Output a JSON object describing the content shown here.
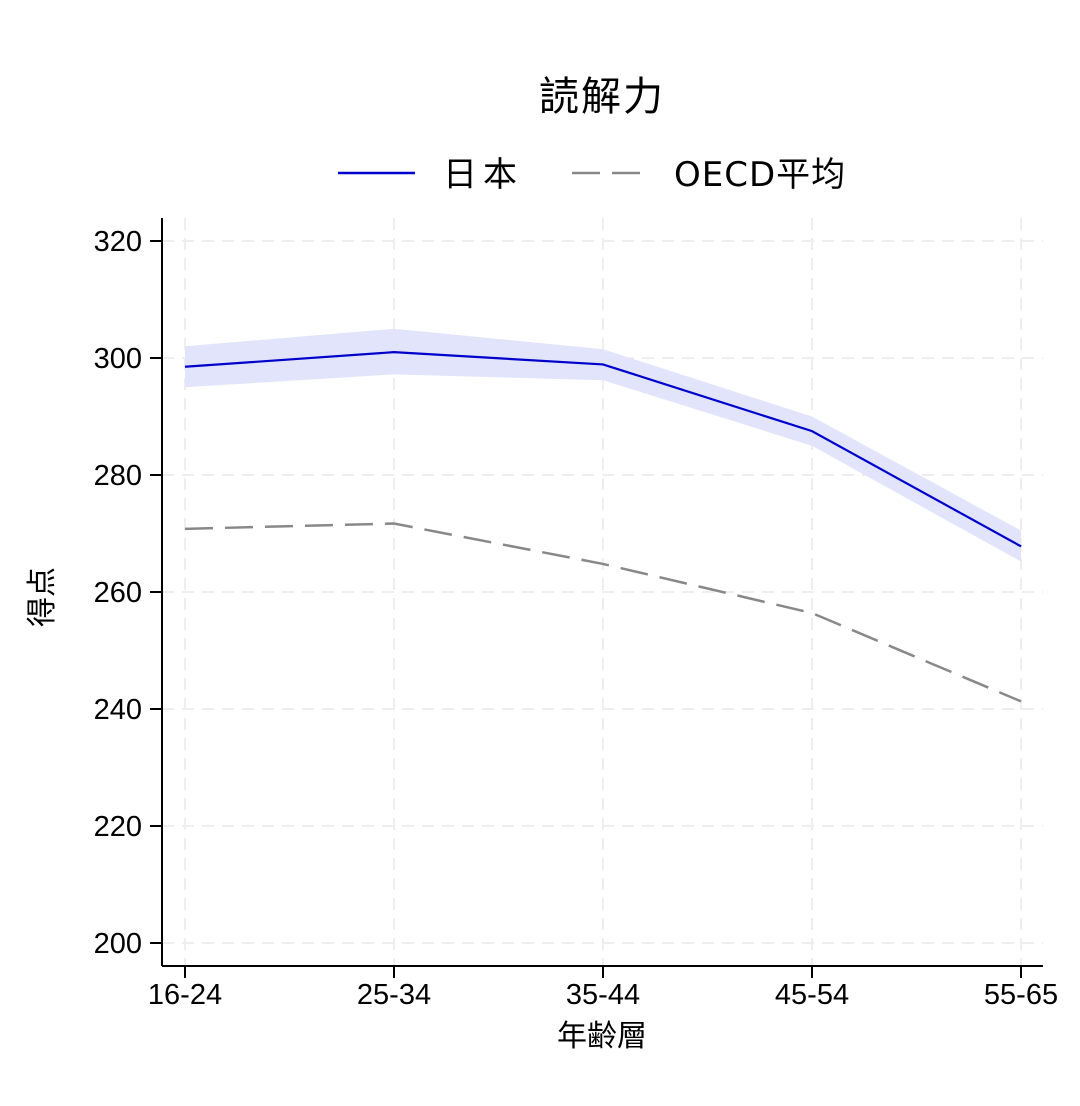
{
  "chart_data": {
    "type": "line",
    "title": "読解力",
    "xlabel": "年齢層",
    "ylabel": "得点",
    "categories": [
      "16-24",
      "25-34",
      "35-44",
      "45-54",
      "55-65"
    ],
    "ylim": [
      196,
      324
    ],
    "yticks": [
      200,
      220,
      240,
      260,
      280,
      300,
      320
    ],
    "grid": true,
    "legend_position": "top-center",
    "series": [
      {
        "name": "日本",
        "values": [
          298.5,
          301.0,
          298.9,
          287.5,
          267.8
        ],
        "band_upper": [
          302.0,
          305.0,
          301.5,
          290.0,
          270.5
        ],
        "band_lower": [
          295.0,
          297.2,
          296.2,
          285.0,
          265.2
        ],
        "color": "#0000cc",
        "band_color": "#e2e4fb",
        "dash": "solid"
      },
      {
        "name": "OECD平均",
        "values": [
          270.8,
          271.7,
          264.8,
          256.4,
          241.3
        ],
        "color": "#888888",
        "dash": "dashed"
      }
    ]
  }
}
